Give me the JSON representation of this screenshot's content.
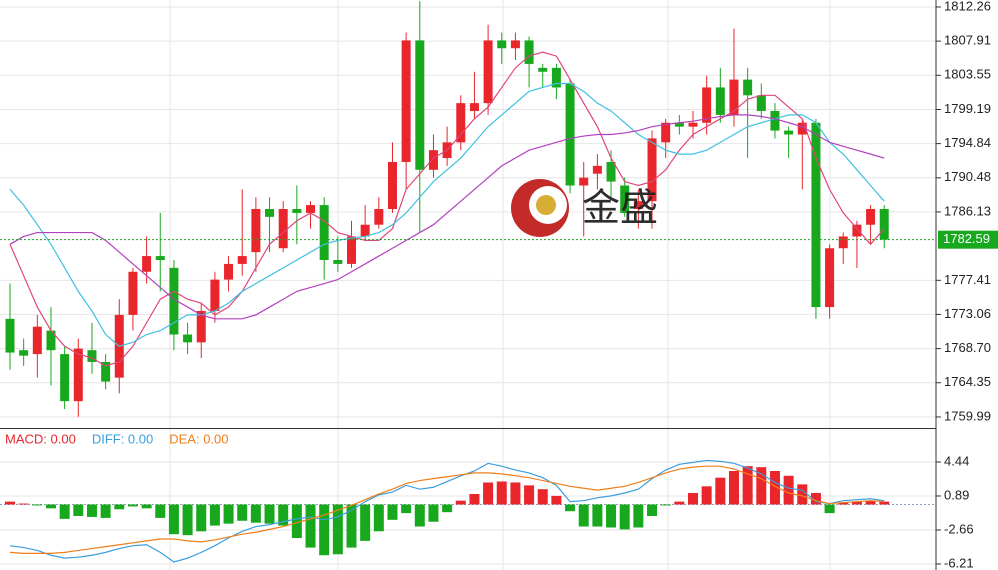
{
  "chart_data": [
    {
      "type": "candlestick",
      "open": [
        1772.5,
        1768.5,
        1768,
        1771,
        1768,
        1762,
        1768.5,
        1767,
        1765,
        1773,
        1778.5,
        1780.5,
        1779,
        1770.5,
        1769.5,
        1773.5,
        1777.5,
        1779.5,
        1781,
        1786.5,
        1781.5,
        1786.5,
        1786,
        1787,
        1780,
        1779.5,
        1783,
        1784.5,
        1786.5,
        1792.5,
        1808,
        1791.5,
        1793,
        1795,
        1799,
        1800,
        1808,
        1807,
        1808,
        1804.5,
        1804.5,
        1802.5,
        1789.5,
        1791,
        1792.5,
        1789.5,
        1786.5,
        1787.5,
        1795,
        1797.5,
        1797,
        1797.5,
        1802,
        1798.5,
        1803,
        1801,
        1799,
        1796.5,
        1796,
        1797.5,
        1774,
        1781.5,
        1783,
        1784.5,
        1786.5
      ],
      "close": [
        1768.2,
        1767.8,
        1771.5,
        1768.5,
        1762,
        1768.7,
        1767,
        1764.5,
        1773,
        1778.5,
        1780.5,
        1780,
        1770.5,
        1769.5,
        1773.5,
        1777.5,
        1779.5,
        1780.5,
        1786.5,
        1785.5,
        1786.5,
        1786,
        1787,
        1780,
        1779.5,
        1783,
        1784.5,
        1786.5,
        1792.5,
        1808,
        1791.5,
        1794,
        1795,
        1800,
        1800,
        1808,
        1807,
        1808,
        1805,
        1804,
        1802,
        1789.5,
        1790.5,
        1792,
        1790,
        1786,
        1787.5,
        1795.5,
        1797.5,
        1797,
        1797.5,
        1802,
        1798.5,
        1803,
        1801,
        1799,
        1796.5,
        1796,
        1797.5,
        1774,
        1781.5,
        1783,
        1784.5,
        1786.5,
        1782.59
      ],
      "high": [
        1777,
        1770,
        1773,
        1774,
        1769,
        1770,
        1772,
        1768,
        1775,
        1779,
        1783,
        1786,
        1780,
        1772,
        1774.5,
        1778.5,
        1780.5,
        1789,
        1788,
        1788,
        1787.5,
        1789.5,
        1787.5,
        1788,
        1783,
        1785,
        1787,
        1788,
        1795,
        1809,
        1813,
        1796,
        1797,
        1801,
        1804,
        1810,
        1809,
        1809,
        1808.5,
        1805,
        1805,
        1803,
        1792.5,
        1793.5,
        1794,
        1790.5,
        1789,
        1796.5,
        1798,
        1798.5,
        1799,
        1803.5,
        1804.5,
        1809.5,
        1804.5,
        1802.5,
        1800,
        1797,
        1798,
        1798,
        1782,
        1783.5,
        1785,
        1787,
        1787
      ],
      "low": [
        1766,
        1766.5,
        1765,
        1764,
        1761,
        1760,
        1765.5,
        1763.5,
        1763,
        1771,
        1777,
        1776,
        1768.5,
        1768,
        1767.5,
        1772,
        1776,
        1778,
        1778.5,
        1781,
        1781,
        1782,
        1784,
        1777.5,
        1778.5,
        1779,
        1782.5,
        1784,
        1786,
        1789,
        1783.5,
        1790.5,
        1792,
        1794,
        1798,
        1798.5,
        1805,
        1805.5,
        1802,
        1802,
        1800.5,
        1788.5,
        1783,
        1789,
        1788,
        1785.5,
        1784,
        1784,
        1793,
        1796,
        1795.5,
        1796,
        1797.5,
        1797,
        1793,
        1798,
        1795.5,
        1793,
        1789,
        1772.5,
        1772.5,
        1779.5,
        1779,
        1782,
        1781.5
      ],
      "up_color": "#e8262b",
      "down_color": "#18a81d",
      "series": [
        {
          "color": "#e0457b",
          "values": [
            1782,
            1778,
            1774,
            1771,
            1769,
            1768,
            1767.5,
            1766.5,
            1767,
            1769,
            1772,
            1775,
            1776,
            1775,
            1774.5,
            1773,
            1774,
            1776,
            1779,
            1782,
            1783.5,
            1785,
            1786,
            1785,
            1783.5,
            1783,
            1782.5,
            1782.5,
            1784,
            1789,
            1791,
            1793,
            1794,
            1796,
            1798,
            1799.5,
            1802,
            1804.5,
            1806,
            1806.5,
            1806,
            1803,
            1800,
            1797,
            1793,
            1790,
            1789.5,
            1790,
            1791.5,
            1794,
            1796,
            1797,
            1798,
            1799,
            1800.5,
            1801,
            1801,
            1799.5,
            1798,
            1793,
            1789,
            1786,
            1784,
            1782,
            1784
          ]
        },
        {
          "color": "#3fc0e0",
          "values": [
            1789,
            1787,
            1784.5,
            1782,
            1779,
            1776,
            1773.5,
            1770.5,
            1769,
            1769.5,
            1770.5,
            1771,
            1772,
            1773,
            1773,
            1773.5,
            1774.5,
            1776,
            1777,
            1778,
            1779,
            1780,
            1781,
            1782,
            1782.5,
            1782.8,
            1783,
            1783.5,
            1784.5,
            1786,
            1788,
            1790,
            1791.5,
            1793,
            1795,
            1797,
            1798.5,
            1800,
            1801.5,
            1802,
            1802.5,
            1802.5,
            1801.5,
            1800,
            1799,
            1797.5,
            1796,
            1795,
            1794,
            1793.5,
            1793.5,
            1794,
            1795,
            1796,
            1797,
            1797.5,
            1798,
            1798.5,
            1798.5,
            1797.5,
            1795,
            1793.5,
            1791.5,
            1789.5,
            1787.5
          ]
        },
        {
          "color": "#b340c0",
          "values": [
            1782,
            1783,
            1783.5,
            1783.5,
            1783.5,
            1783.5,
            1783.5,
            1782.5,
            1781,
            1779.5,
            1778,
            1776.5,
            1775,
            1774,
            1773,
            1772.5,
            1772.5,
            1772.5,
            1773,
            1774,
            1775,
            1776,
            1776.5,
            1777,
            1777.5,
            1778.5,
            1779.5,
            1780.5,
            1781.5,
            1782.5,
            1783.5,
            1784.5,
            1786,
            1787.5,
            1789,
            1790.5,
            1792,
            1793,
            1794,
            1794.5,
            1795,
            1795.5,
            1795.8,
            1796,
            1796,
            1796.2,
            1796.5,
            1797,
            1797.3,
            1797.5,
            1797.7,
            1798,
            1798.3,
            1798.5,
            1798.5,
            1798.3,
            1798,
            1797.5,
            1797,
            1796,
            1795,
            1794.5,
            1794,
            1793.5,
            1793
          ]
        }
      ],
      "last_price": 1782.59,
      "last_price_color": "#18a81d",
      "watermark": "金盛",
      "ylim": [
        1758.58,
        1813.15
      ],
      "yticks": [
        1812.26,
        1807.91,
        1803.55,
        1799.19,
        1794.84,
        1790.48,
        1786.13,
        1777.41,
        1773.06,
        {
          "value": 1768.7,
          "label": "1768.70"
        },
        1764.35,
        1759.99
      ],
      "grid": true
    },
    {
      "type": "macd",
      "up_color": "#e8262b",
      "down_color": "#18a81d",
      "series": [
        {
          "name": "MACD: 0.00",
          "color": "#e8262b",
          "values": [
            0.3,
            0.1,
            -0.1,
            -0.4,
            -1.5,
            -1.2,
            -1.3,
            -1.4,
            -0.5,
            -0.2,
            -0.4,
            -1.4,
            -3.1,
            -3.2,
            -2.8,
            -2.2,
            -2.0,
            -1.7,
            -1.9,
            -2.0,
            -2.2,
            -3.5,
            -4.5,
            -5.3,
            -5.2,
            -4.5,
            -3.8,
            -2.8,
            -1.6,
            -0.9,
            -2.3,
            -1.8,
            -0.8,
            0.4,
            1.1,
            2.3,
            2.4,
            2.3,
            2.0,
            1.6,
            0.9,
            -0.7,
            -2.3,
            -2.3,
            -2.4,
            -2.6,
            -2.4,
            -1.2,
            -0.1,
            0.3,
            1.2,
            1.9,
            2.8,
            3.5,
            4.0,
            3.9,
            3.5,
            3.0,
            2.1,
            1.2,
            -0.9,
            0.2,
            0.3,
            0.4,
            0.3
          ]
        },
        {
          "name": "DIFF: 0.00",
          "color": "#3a9ee0",
          "values": [
            -4.3,
            -4.5,
            -4.8,
            -5.3,
            -5.6,
            -5.5,
            -5.3,
            -5.0,
            -4.6,
            -4.3,
            -4.2,
            -5.0,
            -6.0,
            -5.6,
            -5.0,
            -4.3,
            -3.5,
            -2.8,
            -2.3,
            -2.1,
            -1.8,
            -1.5,
            -1.3,
            -1.6,
            -1.3,
            -0.6,
            0.3,
            1.0,
            1.3,
            2.0,
            1.6,
            1.8,
            2.4,
            3.0,
            3.5,
            4.3,
            4.0,
            3.6,
            3.3,
            2.8,
            2.0,
            0.3,
            0.4,
            0.7,
            0.9,
            1.2,
            1.6,
            2.7,
            3.6,
            4.2,
            4.4,
            4.6,
            4.5,
            4.3,
            3.8,
            3.2,
            2.3,
            1.7,
            1.5,
            0.3,
            0.1,
            0.4,
            0.5,
            0.6,
            0.4
          ]
        },
        {
          "name": "DEA: 0.00",
          "color": "#f07f1a",
          "values": [
            -5.0,
            -5.1,
            -5.1,
            -5.1,
            -5.0,
            -4.8,
            -4.6,
            -4.4,
            -4.2,
            -4.0,
            -3.8,
            -3.6,
            -3.6,
            -3.8,
            -3.9,
            -3.7,
            -3.4,
            -3.1,
            -2.9,
            -2.6,
            -2.3,
            -1.9,
            -1.5,
            -1.1,
            -0.6,
            -0.1,
            0.5,
            1.1,
            1.6,
            2.2,
            2.5,
            2.7,
            2.9,
            3.1,
            3.3,
            3.3,
            3.2,
            3.0,
            2.8,
            2.5,
            2.2,
            1.9,
            1.7,
            1.5,
            1.7,
            1.9,
            2.3,
            2.8,
            3.3,
            3.7,
            3.9,
            4.0,
            4.0,
            3.7,
            3.2,
            2.7,
            1.9,
            1.2,
            0.9,
            0.4,
            0.1,
            0.2,
            0.3,
            0.4,
            0.3
          ]
        }
      ],
      "ylim": [
        -6.84,
        7.78
      ],
      "yticks": [
        4.44,
        0.89,
        -2.66,
        -6.21
      ],
      "grid": true
    }
  ]
}
